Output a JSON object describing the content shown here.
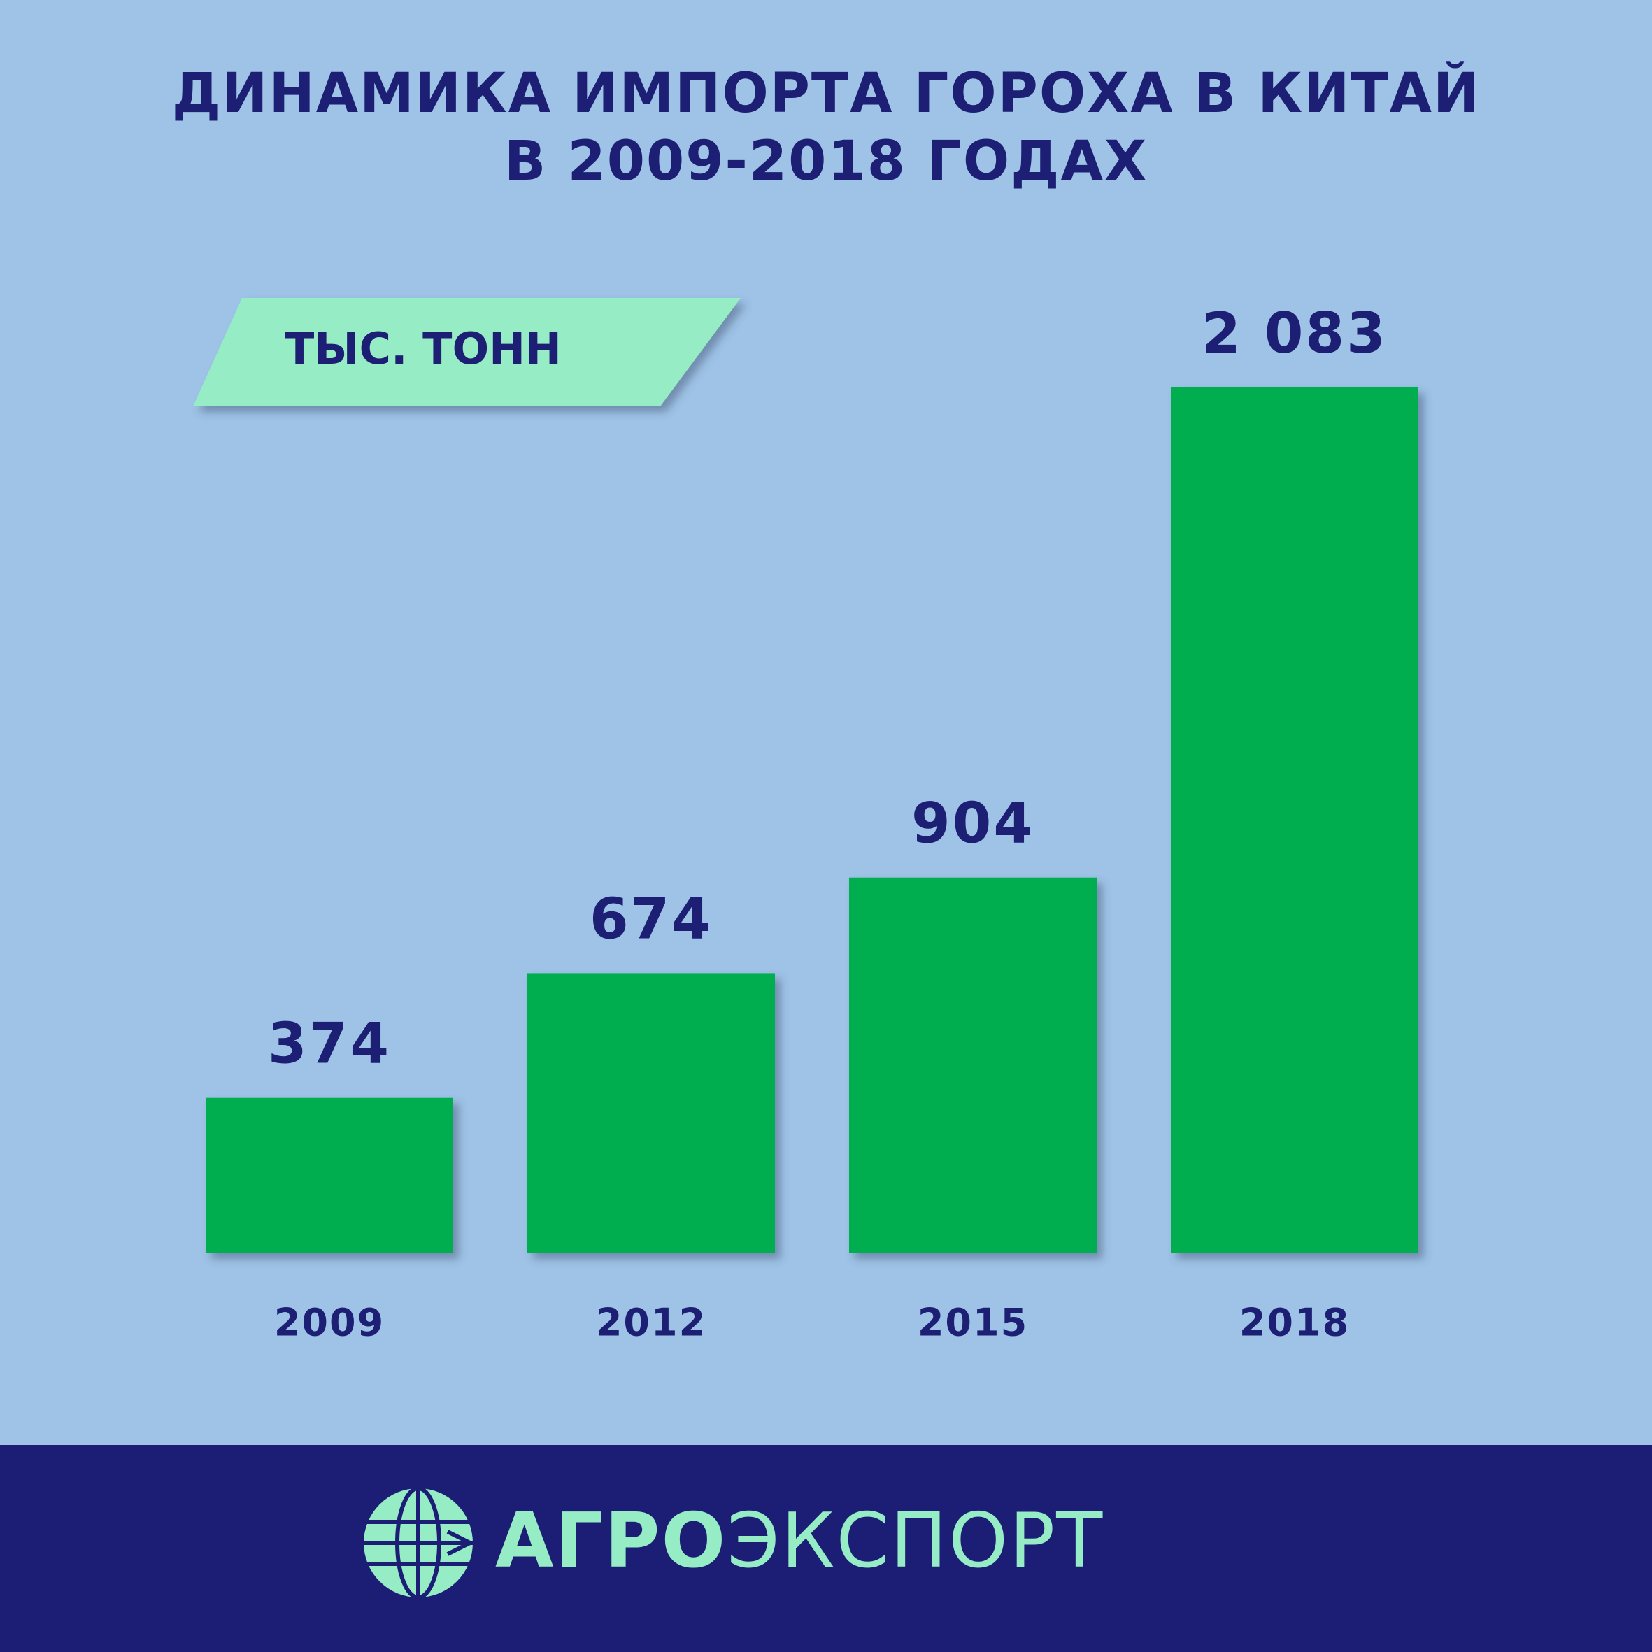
{
  "chart_data": {
    "type": "bar",
    "title": "ДИНАМИКА ИМПОРТА ГОРОХА В КИТАЙ\nВ 2009-2018 ГОДАХ",
    "unit_label": "ТЫС. ТОНН",
    "categories": [
      "2009",
      "2012",
      "2015",
      "2018"
    ],
    "values": [
      374,
      674,
      904,
      2083
    ],
    "value_labels": [
      "374",
      "674",
      "904",
      "2 083"
    ],
    "color": "#00ad4f"
  },
  "footer": {
    "logo_bold": "АГРО",
    "logo_light": "ЭКСПОРТ"
  }
}
